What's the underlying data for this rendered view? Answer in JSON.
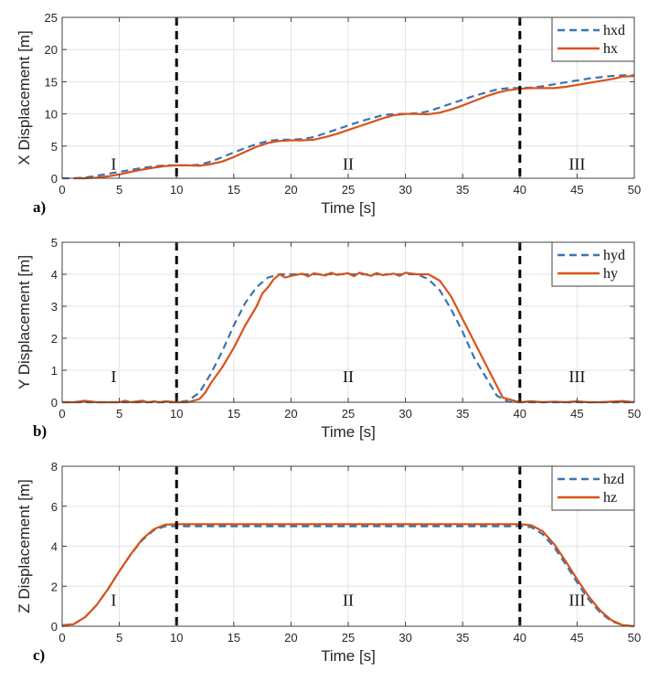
{
  "colors": {
    "desired": "#3a75b0",
    "actual": "#d95319",
    "grid": "#e3e3e3",
    "axis": "#404040",
    "phase_line": "#000000"
  },
  "chart_data": [
    {
      "type": "line",
      "panel_label": "a)",
      "title": "",
      "xlabel": "Time [s]",
      "ylabel": "X Displacement [m]",
      "xlim": [
        0,
        50
      ],
      "ylim": [
        0,
        25
      ],
      "xticks": [
        0,
        5,
        10,
        15,
        20,
        25,
        30,
        35,
        40,
        45,
        50
      ],
      "yticks": [
        0,
        5,
        10,
        15,
        20,
        25
      ],
      "grid": true,
      "legend": "top-right",
      "phase_boundaries": [
        10,
        40
      ],
      "phase_labels": [
        {
          "text": "I",
          "x": 4.5,
          "y": 2.2
        },
        {
          "text": "II",
          "x": 25,
          "y": 2.2
        },
        {
          "text": "III",
          "x": 45,
          "y": 2.2
        }
      ],
      "series": [
        {
          "name": "hxd",
          "style": "dashed",
          "color_key": "desired",
          "x": [
            0,
            1,
            2,
            3,
            4,
            5,
            6,
            7,
            8,
            9,
            10,
            11,
            12,
            13,
            14,
            15,
            16,
            17,
            18,
            19,
            20,
            21,
            22,
            23,
            24,
            25,
            26,
            27,
            28,
            29,
            30,
            31,
            32,
            33,
            34,
            35,
            36,
            37,
            38,
            39,
            40,
            41,
            42,
            43,
            44,
            45,
            46,
            47,
            48,
            49,
            50
          ],
          "y": [
            0,
            0,
            0.1,
            0.4,
            0.7,
            1.0,
            1.3,
            1.6,
            1.85,
            2.0,
            2.0,
            2.0,
            2.1,
            2.6,
            3.3,
            4.0,
            4.7,
            5.3,
            5.8,
            6.0,
            6.0,
            6.1,
            6.4,
            7.0,
            7.6,
            8.2,
            8.8,
            9.3,
            9.8,
            10.0,
            10.0,
            10.1,
            10.4,
            11.0,
            11.6,
            12.2,
            12.8,
            13.3,
            13.8,
            14.0,
            14.0,
            14.1,
            14.3,
            14.6,
            14.9,
            15.2,
            15.5,
            15.7,
            15.9,
            16.0,
            16.0
          ]
        },
        {
          "name": "hx",
          "style": "solid",
          "color_key": "actual",
          "x": [
            1,
            2,
            3,
            4,
            5,
            6,
            7,
            8,
            9,
            10,
            11,
            12,
            13,
            14,
            15,
            16,
            17,
            18,
            19,
            20,
            21,
            22,
            23,
            24,
            25,
            26,
            27,
            28,
            29,
            30,
            31,
            32,
            33,
            34,
            35,
            36,
            37,
            38,
            39,
            40,
            41,
            42,
            43,
            44,
            45,
            46,
            47,
            48,
            49,
            50
          ],
          "y": [
            0,
            0,
            0.1,
            0.3,
            0.6,
            1.0,
            1.35,
            1.65,
            1.9,
            2.0,
            2.0,
            1.95,
            2.2,
            2.6,
            3.3,
            4.1,
            4.9,
            5.5,
            5.8,
            5.9,
            5.9,
            6.0,
            6.4,
            6.9,
            7.5,
            8.1,
            8.7,
            9.3,
            9.8,
            10.0,
            10.0,
            9.95,
            10.2,
            10.7,
            11.3,
            12.0,
            12.7,
            13.3,
            13.7,
            13.9,
            14.0,
            14.0,
            14.0,
            14.2,
            14.5,
            14.8,
            15.1,
            15.4,
            15.8,
            15.9
          ]
        }
      ]
    },
    {
      "type": "line",
      "panel_label": "b)",
      "title": "",
      "xlabel": "Time [s]",
      "ylabel": "Y Displacement [m]",
      "xlim": [
        0,
        50
      ],
      "ylim": [
        0,
        5
      ],
      "xticks": [
        0,
        5,
        10,
        15,
        20,
        25,
        30,
        35,
        40,
        45,
        50
      ],
      "yticks": [
        0,
        1,
        2,
        3,
        4,
        5
      ],
      "grid": true,
      "legend": "top-right",
      "phase_boundaries": [
        10,
        40
      ],
      "phase_labels": [
        {
          "text": "I",
          "x": 4.5,
          "y": 0.8
        },
        {
          "text": "II",
          "x": 25,
          "y": 0.8
        },
        {
          "text": "III",
          "x": 45,
          "y": 0.8
        }
      ],
      "series": [
        {
          "name": "hyd",
          "style": "dashed",
          "color_key": "desired",
          "x": [
            0,
            5,
            10,
            11,
            12,
            13,
            14,
            15,
            16,
            17,
            18,
            19,
            20,
            25,
            30,
            31,
            32,
            33,
            34,
            35,
            36,
            37,
            38,
            39,
            40,
            45,
            50
          ],
          "y": [
            0,
            0,
            0,
            0.05,
            0.3,
            0.9,
            1.6,
            2.4,
            3.1,
            3.6,
            3.9,
            4.0,
            4.0,
            4.0,
            4.0,
            4.0,
            3.85,
            3.5,
            2.9,
            2.2,
            1.4,
            0.8,
            0.2,
            0.02,
            0,
            0,
            0
          ]
        },
        {
          "name": "hy",
          "style": "solid",
          "color_key": "actual",
          "x": [
            0,
            1,
            2,
            3,
            4,
            5,
            5.5,
            6,
            7,
            7.5,
            8,
            8.5,
            9,
            10,
            11,
            12,
            12.5,
            13,
            14,
            15,
            16,
            17,
            17.5,
            18,
            18.5,
            19,
            19.5,
            20,
            21,
            21.5,
            22,
            23,
            23.5,
            24,
            25,
            25.5,
            26,
            27,
            27.5,
            28,
            29,
            29.5,
            30,
            31,
            32,
            33,
            34,
            35,
            36,
            37,
            38,
            38.5,
            39,
            40,
            41,
            42,
            43,
            44,
            45,
            46,
            47,
            48,
            49,
            50
          ],
          "y": [
            0,
            0,
            0.05,
            0,
            0,
            0,
            0.05,
            0,
            0.05,
            0,
            0.03,
            0,
            0.03,
            0,
            0,
            0.1,
            0.3,
            0.6,
            1.1,
            1.7,
            2.4,
            3.0,
            3.4,
            3.6,
            3.85,
            4.0,
            3.9,
            3.95,
            4.02,
            3.93,
            4.03,
            3.96,
            4.05,
            3.98,
            4.03,
            3.94,
            4.05,
            3.95,
            4.04,
            3.97,
            4.02,
            3.95,
            4.05,
            4.0,
            4.0,
            3.8,
            3.3,
            2.6,
            1.9,
            1.2,
            0.5,
            0.15,
            0.1,
            0.0,
            0.03,
            0.0,
            0.02,
            0.0,
            0.03,
            0.0,
            0.0,
            0.02,
            0.04,
            0.0
          ]
        }
      ]
    },
    {
      "type": "line",
      "panel_label": "c)",
      "title": "",
      "xlabel": "Time [s]",
      "ylabel": "Z Displacement [m]",
      "xlim": [
        0,
        50
      ],
      "ylim": [
        0,
        8
      ],
      "xticks": [
        0,
        5,
        10,
        15,
        20,
        25,
        30,
        35,
        40,
        45,
        50
      ],
      "yticks": [
        0,
        2,
        4,
        6,
        8
      ],
      "grid": true,
      "legend": "top-right",
      "phase_boundaries": [
        10,
        40
      ],
      "phase_labels": [
        {
          "text": "I",
          "x": 4.5,
          "y": 1.3
        },
        {
          "text": "II",
          "x": 25,
          "y": 1.3
        },
        {
          "text": "III",
          "x": 45,
          "y": 1.3
        }
      ],
      "series": [
        {
          "name": "hzd",
          "style": "dashed",
          "color_key": "desired",
          "x": [
            0,
            1,
            2,
            3,
            4,
            5,
            6,
            7,
            8,
            9,
            10,
            15,
            20,
            25,
            30,
            35,
            40,
            41,
            42,
            43,
            44,
            45,
            46,
            47,
            48,
            49,
            50
          ],
          "y": [
            0,
            0.1,
            0.45,
            1.05,
            1.85,
            2.75,
            3.6,
            4.3,
            4.8,
            5.0,
            5.0,
            5.0,
            5.0,
            5.0,
            5.0,
            5.0,
            5.0,
            4.95,
            4.6,
            3.95,
            3.1,
            2.2,
            1.35,
            0.7,
            0.25,
            0.05,
            0
          ]
        },
        {
          "name": "hz",
          "style": "solid",
          "color_key": "actual",
          "x": [
            0,
            1,
            2,
            3,
            4,
            5,
            6,
            7,
            8,
            9,
            10,
            15,
            20,
            25,
            30,
            35,
            40,
            41,
            42,
            43,
            44,
            45,
            46,
            47,
            48,
            49,
            50
          ],
          "y": [
            0.05,
            0.1,
            0.45,
            1.05,
            1.85,
            2.75,
            3.6,
            4.35,
            4.85,
            5.08,
            5.1,
            5.1,
            5.1,
            5.1,
            5.1,
            5.1,
            5.1,
            5.05,
            4.75,
            4.1,
            3.25,
            2.35,
            1.5,
            0.8,
            0.3,
            0.05,
            0
          ]
        }
      ]
    }
  ]
}
